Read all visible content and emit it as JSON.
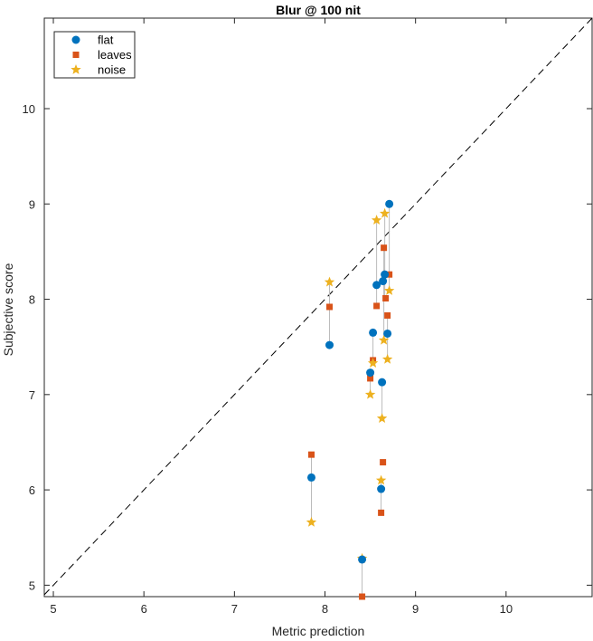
{
  "chart_data": {
    "type": "scatter",
    "title": "Blur @ 100 nit",
    "xlabel": "Metric prediction",
    "ylabel": "Subjective score",
    "xlim": [
      4.9,
      10.95
    ],
    "ylim": [
      4.88,
      10.95
    ],
    "xticks": [
      5,
      6,
      7,
      8,
      9,
      10
    ],
    "yticks": [
      5,
      6,
      7,
      8,
      9,
      10
    ],
    "grid": false,
    "legend_position": "top-left",
    "reference_line": "dashed diagonal y = x",
    "colors": {
      "flat": "#0072BD",
      "leaves": "#D95319",
      "noise": "#EDB120",
      "connector": "#bbbbbb",
      "diagonal": "#000000"
    },
    "series": [
      {
        "name": "flat",
        "marker": "circle",
        "points": [
          [
            8.05,
            7.52
          ],
          [
            7.85,
            6.13
          ],
          [
            8.41,
            5.27
          ],
          [
            8.5,
            7.23
          ],
          [
            8.53,
            7.65
          ],
          [
            8.57,
            8.15
          ],
          [
            8.62,
            6.01
          ],
          [
            8.63,
            7.13
          ],
          [
            8.64,
            8.19
          ],
          [
            8.66,
            8.26
          ],
          [
            8.69,
            7.64
          ],
          [
            8.71,
            9.0
          ]
        ]
      },
      {
        "name": "leaves",
        "marker": "square",
        "points": [
          [
            8.05,
            7.92
          ],
          [
            7.85,
            6.37
          ],
          [
            8.41,
            4.88
          ],
          [
            8.5,
            7.17
          ],
          [
            8.53,
            7.36
          ],
          [
            8.57,
            7.93
          ],
          [
            8.62,
            5.76
          ],
          [
            8.64,
            6.29
          ],
          [
            8.65,
            8.54
          ],
          [
            8.67,
            8.01
          ],
          [
            8.69,
            7.83
          ],
          [
            8.71,
            8.26
          ]
        ]
      },
      {
        "name": "noise",
        "marker": "star",
        "points": [
          [
            8.05,
            8.18
          ],
          [
            7.85,
            5.66
          ],
          [
            8.41,
            5.28
          ],
          [
            8.5,
            7.0
          ],
          [
            8.53,
            7.33
          ],
          [
            8.57,
            8.83
          ],
          [
            8.62,
            6.1
          ],
          [
            8.63,
            6.75
          ],
          [
            8.65,
            7.57
          ],
          [
            8.66,
            8.9
          ],
          [
            8.69,
            7.37
          ],
          [
            8.71,
            8.09
          ]
        ]
      }
    ],
    "connectors": [
      [
        8.05,
        7.52,
        8.18
      ],
      [
        7.85,
        5.66,
        6.37
      ],
      [
        8.41,
        4.88,
        5.28
      ],
      [
        8.5,
        7.0,
        7.23
      ],
      [
        8.53,
        7.33,
        7.65
      ],
      [
        8.57,
        7.93,
        8.83
      ],
      [
        8.62,
        5.76,
        6.1
      ],
      [
        8.63,
        6.75,
        7.13
      ],
      [
        8.65,
        7.57,
        8.54
      ],
      [
        8.66,
        8.01,
        8.9
      ],
      [
        8.69,
        7.37,
        7.83
      ],
      [
        8.71,
        8.09,
        9.0
      ]
    ]
  }
}
